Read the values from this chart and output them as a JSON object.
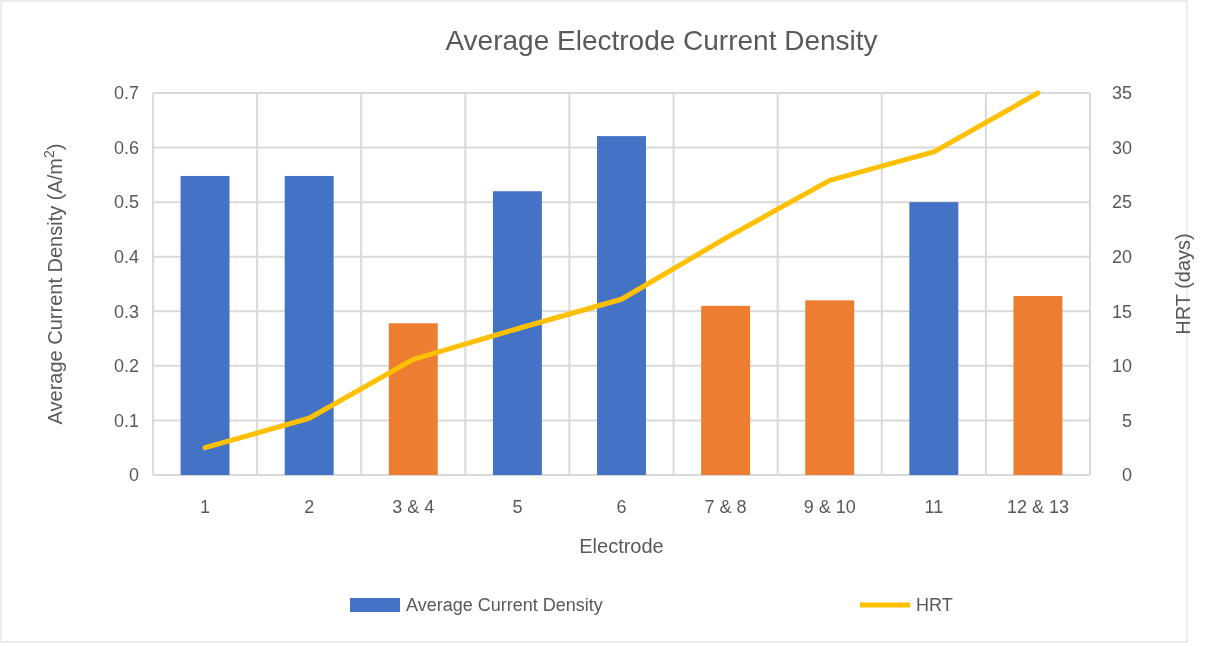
{
  "chart_data": {
    "type": "bar",
    "title": "Average Electrode Current Density",
    "xlabel": "Electrode",
    "ylabel": "Average Current Density (A/m$^{2}$)",
    "y2label": "HRT (days)",
    "categories": [
      "1",
      "2",
      "3 & 4",
      "5",
      "6",
      "7 & 8",
      "9 & 10",
      "11",
      "12 & 13"
    ],
    "series": [
      {
        "name": "Average Current Density",
        "color": "#4472c4",
        "colors": [
          "#4472c4",
          "#4472c4",
          "#ed7d31",
          "#4472c4",
          "#4472c4",
          "#ed7d31",
          "#ed7d31",
          "#4472c4",
          "#ed7d31"
        ],
        "values": [
          0.548,
          0.548,
          0.278,
          0.52,
          0.621,
          0.31,
          0.32,
          0.5,
          0.328
        ]
      },
      {
        "name": "HRT",
        "type": "line",
        "axis": "y2",
        "color": "#ffc000",
        "values": [
          2.5,
          5.2,
          10.6,
          13.4,
          16.1,
          21.7,
          27.0,
          29.6,
          35
        ]
      }
    ],
    "ylim": [
      0,
      0.7
    ],
    "yticks": [
      0,
      0.1,
      0.2,
      0.3,
      0.4,
      0.5,
      0.6,
      0.7
    ],
    "y2lim": [
      0,
      35
    ],
    "y2ticks": [
      0,
      5,
      10,
      15,
      20,
      25,
      30,
      35
    ],
    "grid": true,
    "legend": "bottom",
    "marker": "none",
    "line_style": "solid"
  }
}
